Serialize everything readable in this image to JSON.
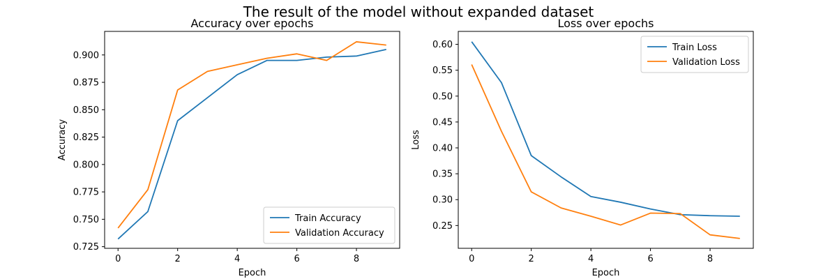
{
  "figure": {
    "suptitle": "The result of the model without expanded dataset"
  },
  "chart_data": [
    {
      "type": "line",
      "title": "Accuracy over epochs",
      "xlabel": "Epoch",
      "ylabel": "Accuracy",
      "x": [
        0,
        1,
        2,
        3,
        4,
        5,
        6,
        7,
        8,
        9
      ],
      "xlim": [
        -0.45,
        9.45
      ],
      "ylim": [
        0.7235,
        0.9215
      ],
      "xticks": [
        0,
        2,
        4,
        6,
        8
      ],
      "yticks": [
        0.725,
        0.75,
        0.775,
        0.8,
        0.825,
        0.85,
        0.875,
        0.9
      ],
      "ytick_labels": [
        "0.725",
        "0.750",
        "0.775",
        "0.800",
        "0.825",
        "0.850",
        "0.875",
        "0.900"
      ],
      "legend_loc": "lower-right",
      "grid": false,
      "series": [
        {
          "name": "Train Accuracy",
          "color": "#1f77b4",
          "values": [
            0.732,
            0.757,
            0.84,
            0.861,
            0.882,
            0.895,
            0.895,
            0.898,
            0.899,
            0.905
          ]
        },
        {
          "name": "Validation Accuracy",
          "color": "#ff7f0e",
          "values": [
            0.742,
            0.777,
            0.868,
            0.885,
            0.891,
            0.897,
            0.901,
            0.895,
            0.912,
            0.909
          ]
        }
      ]
    },
    {
      "type": "line",
      "title": "Loss over epochs",
      "xlabel": "Epoch",
      "ylabel": "Loss",
      "x": [
        0,
        1,
        2,
        3,
        4,
        5,
        6,
        7,
        8,
        9
      ],
      "xlim": [
        -0.45,
        9.45
      ],
      "ylim": [
        0.206,
        0.625
      ],
      "xticks": [
        0,
        2,
        4,
        6,
        8
      ],
      "yticks": [
        0.25,
        0.3,
        0.35,
        0.4,
        0.45,
        0.5,
        0.55,
        0.6
      ],
      "ytick_labels": [
        "0.25",
        "0.30",
        "0.35",
        "0.40",
        "0.45",
        "0.50",
        "0.55",
        "0.60"
      ],
      "legend_loc": "upper-right",
      "grid": false,
      "series": [
        {
          "name": "Train Loss",
          "color": "#1f77b4",
          "values": [
            0.605,
            0.526,
            0.385,
            0.344,
            0.306,
            0.295,
            0.282,
            0.271,
            0.269,
            0.268
          ]
        },
        {
          "name": "Validation Loss",
          "color": "#ff7f0e",
          "values": [
            0.561,
            0.432,
            0.315,
            0.284,
            0.268,
            0.251,
            0.274,
            0.273,
            0.232,
            0.225
          ]
        }
      ]
    }
  ]
}
